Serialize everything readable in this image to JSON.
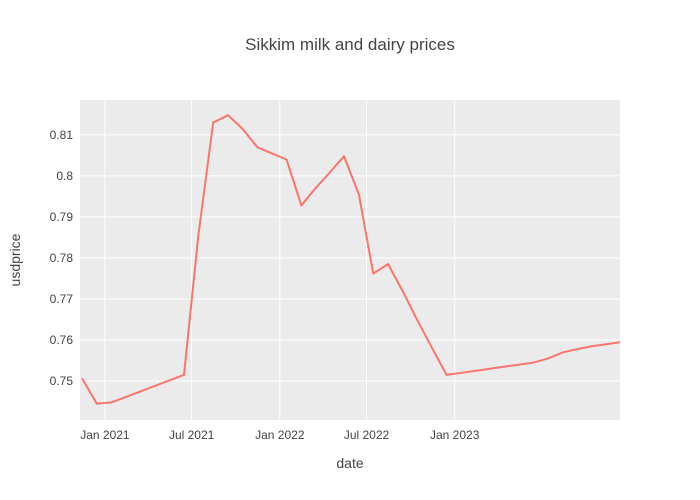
{
  "chart_data": {
    "type": "line",
    "title": "Sikkim milk and dairy prices",
    "xlabel": "date",
    "ylabel": "usdprice",
    "xlim": [
      "2020-11-10",
      "2023-12-12"
    ],
    "ylim": [
      0.7405,
      0.8185
    ],
    "x_ticks": [
      {
        "value": "2021-01-01",
        "label": "Jan 2021"
      },
      {
        "value": "2021-07-01",
        "label": "Jul 2021"
      },
      {
        "value": "2022-01-01",
        "label": "Jan 2022"
      },
      {
        "value": "2022-07-01",
        "label": "Jul 2022"
      },
      {
        "value": "2023-01-01",
        "label": "Jan 2023"
      }
    ],
    "y_ticks": [
      {
        "value": 0.75,
        "label": "0.75"
      },
      {
        "value": 0.76,
        "label": "0.76"
      },
      {
        "value": 0.77,
        "label": "0.77"
      },
      {
        "value": 0.78,
        "label": "0.78"
      },
      {
        "value": 0.79,
        "label": "0.79"
      },
      {
        "value": 0.8,
        "label": "0.8"
      },
      {
        "value": 0.81,
        "label": "0.81"
      }
    ],
    "grid": true,
    "colors": {
      "background": "#ebebeb",
      "grid": "#ffffff",
      "line": "#f8766d",
      "text": "#444444"
    },
    "series": [
      {
        "x": [
          "2020-11-15",
          "2020-12-15",
          "2021-01-15",
          "2021-06-15",
          "2021-07-15",
          "2021-08-15",
          "2021-09-15",
          "2021-10-15",
          "2021-11-15",
          "2021-12-15",
          "2022-01-15",
          "2022-02-15",
          "2022-03-15",
          "2022-04-15",
          "2022-05-15",
          "2022-06-15",
          "2022-07-15",
          "2022-08-15",
          "2022-09-15",
          "2022-10-15",
          "2022-11-15",
          "2022-12-15",
          "2023-01-15",
          "2023-02-15",
          "2023-03-15",
          "2023-04-15",
          "2023-05-15",
          "2023-06-15",
          "2023-07-15",
          "2023-08-15",
          "2023-09-15",
          "2023-10-15",
          "2023-11-15",
          "2023-12-15"
        ],
        "values": [
          0.7505,
          0.7445,
          0.7448,
          0.7515,
          0.7855,
          0.813,
          0.8148,
          0.8115,
          0.807,
          0.8055,
          0.804,
          0.7928,
          0.7968,
          0.8008,
          0.8048,
          0.7955,
          0.7762,
          0.7785,
          0.7718,
          0.7648,
          0.758,
          0.7515,
          0.752,
          0.7525,
          0.753,
          0.7535,
          0.754,
          0.7545,
          0.7555,
          0.757,
          0.7578,
          0.7585,
          0.759,
          0.7595
        ]
      }
    ]
  }
}
